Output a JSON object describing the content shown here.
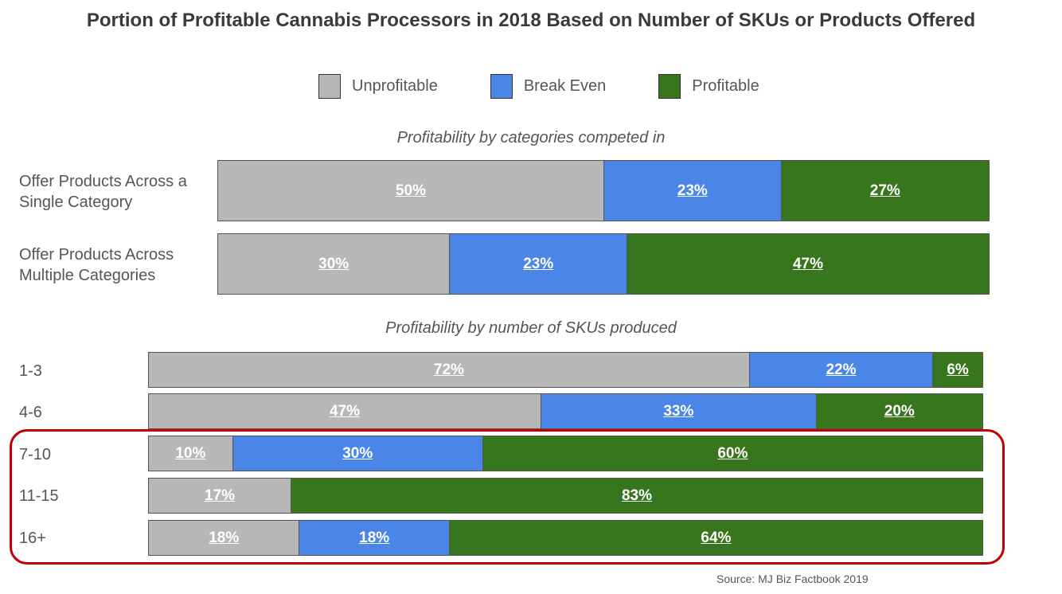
{
  "chart_data": {
    "type": "bar",
    "orientation": "horizontal",
    "stacked": true,
    "percent": true,
    "title": "Portion of Profitable Cannabis Processors in 2018 Based on Number of SKUs or Products Offered",
    "legend": {
      "placement": "top-center",
      "entries": [
        {
          "name": "Unprofitable",
          "color": "#b7b7b7"
        },
        {
          "name": "Break Even",
          "color": "#4a86e8"
        },
        {
          "name": "Profitable",
          "color": "#38761d"
        }
      ]
    },
    "series": [
      {
        "name": "Unprofitable",
        "color": "#b7b7b7"
      },
      {
        "name": "Break Even",
        "color": "#4a86e8"
      },
      {
        "name": "Profitable",
        "color": "#38761d"
      }
    ],
    "groups": [
      {
        "title": "Profitability by categories competed in",
        "rows": [
          {
            "label": "Offer Products Across a Single Category",
            "values": [
              50,
              23,
              27
            ]
          },
          {
            "label": "Offer Products Across Multiple Categories",
            "values": [
              30,
              23,
              47
            ]
          }
        ]
      },
      {
        "title": "Profitability by number of SKUs produced",
        "rows": [
          {
            "label": "1-3",
            "values": [
              72,
              22,
              6
            ]
          },
          {
            "label": "4-6",
            "values": [
              47,
              33,
              20
            ]
          },
          {
            "label": "7-10",
            "values": [
              10,
              30,
              60
            ]
          },
          {
            "label": "11-15",
            "values": [
              17,
              0,
              83
            ]
          },
          {
            "label": "16+",
            "values": [
              18,
              18,
              64
            ]
          }
        ]
      }
    ],
    "highlight": {
      "rows": [
        "7-10",
        "11-15",
        "16+"
      ],
      "color": "#c00000"
    },
    "source": "Source: MJ Biz Factbook 2019"
  }
}
